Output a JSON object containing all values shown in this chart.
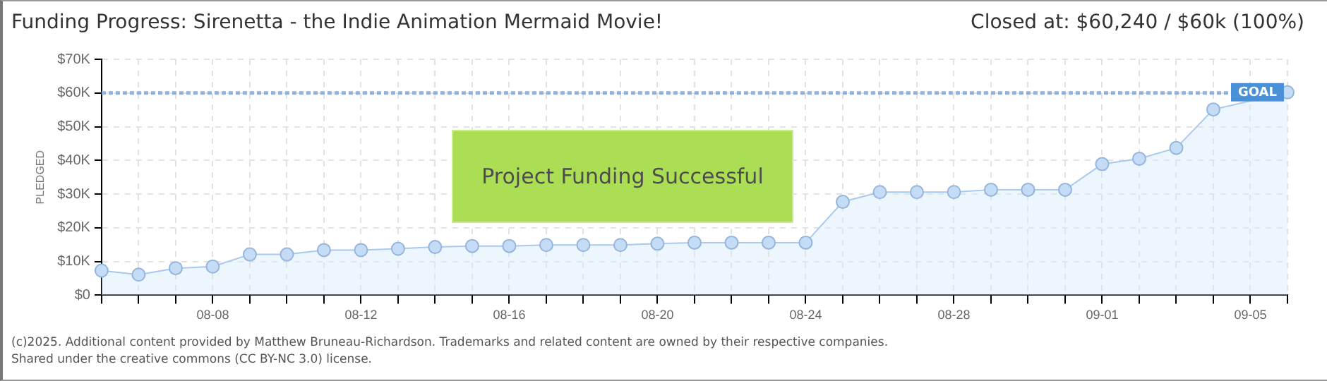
{
  "chart_data": {
    "type": "area",
    "title": "Funding Progress: Sirenetta - the Indie Animation Mermaid Movie!",
    "subtitle": "Closed at:  $60,240 /  $60k (100%)",
    "ylabel": "PLEDGED",
    "categories": [
      null,
      null,
      null,
      "08-08",
      null,
      null,
      null,
      "08-12",
      null,
      null,
      null,
      "08-16",
      null,
      null,
      null,
      "08-20",
      null,
      null,
      null,
      "08-24",
      null,
      null,
      null,
      "08-28",
      null,
      null,
      null,
      "09-01",
      null,
      null,
      null,
      "09-05",
      null
    ],
    "series": [
      {
        "color": "#a9c9ee",
        "values": [
          7.3,
          6.1,
          8.0,
          8.5,
          12.1,
          12.1,
          13.4,
          13.4,
          13.8,
          14.3,
          14.6,
          14.6,
          14.9,
          14.9,
          14.9,
          15.3,
          15.6,
          15.6,
          15.6,
          15.6,
          27.7,
          30.6,
          30.6,
          30.6,
          31.3,
          31.3,
          31.3,
          38.9,
          40.5,
          43.7,
          55.1,
          null,
          60.2
        ]
      }
    ],
    "ylim": [
      0,
      70
    ],
    "yticks": [
      {
        "value": 0,
        "label": "$0"
      },
      {
        "value": 10,
        "label": "$10K"
      },
      {
        "value": 20,
        "label": "$20K"
      },
      {
        "value": 30,
        "label": "$30K"
      },
      {
        "value": 40,
        "label": "$40K"
      },
      {
        "value": 50,
        "label": "$50K"
      },
      {
        "value": 60,
        "label": "$60K"
      },
      {
        "value": 70,
        "label": "$70K"
      }
    ],
    "grid": true,
    "legend": false,
    "marker": "circle",
    "ref_lines": [
      {
        "axis": "y",
        "value": 60,
        "label": "GOAL",
        "color": "#8fb3e0",
        "line_style": "dotted"
      }
    ],
    "annotations": [
      "Project Funding Successful",
      "(c)2025. Additional content provided by Matthew Bruneau-Richardson. Trademarks and related content are owned by their respective companies.",
      "Shared under the creative commons (CC BY-NC 3.0) license."
    ]
  }
}
